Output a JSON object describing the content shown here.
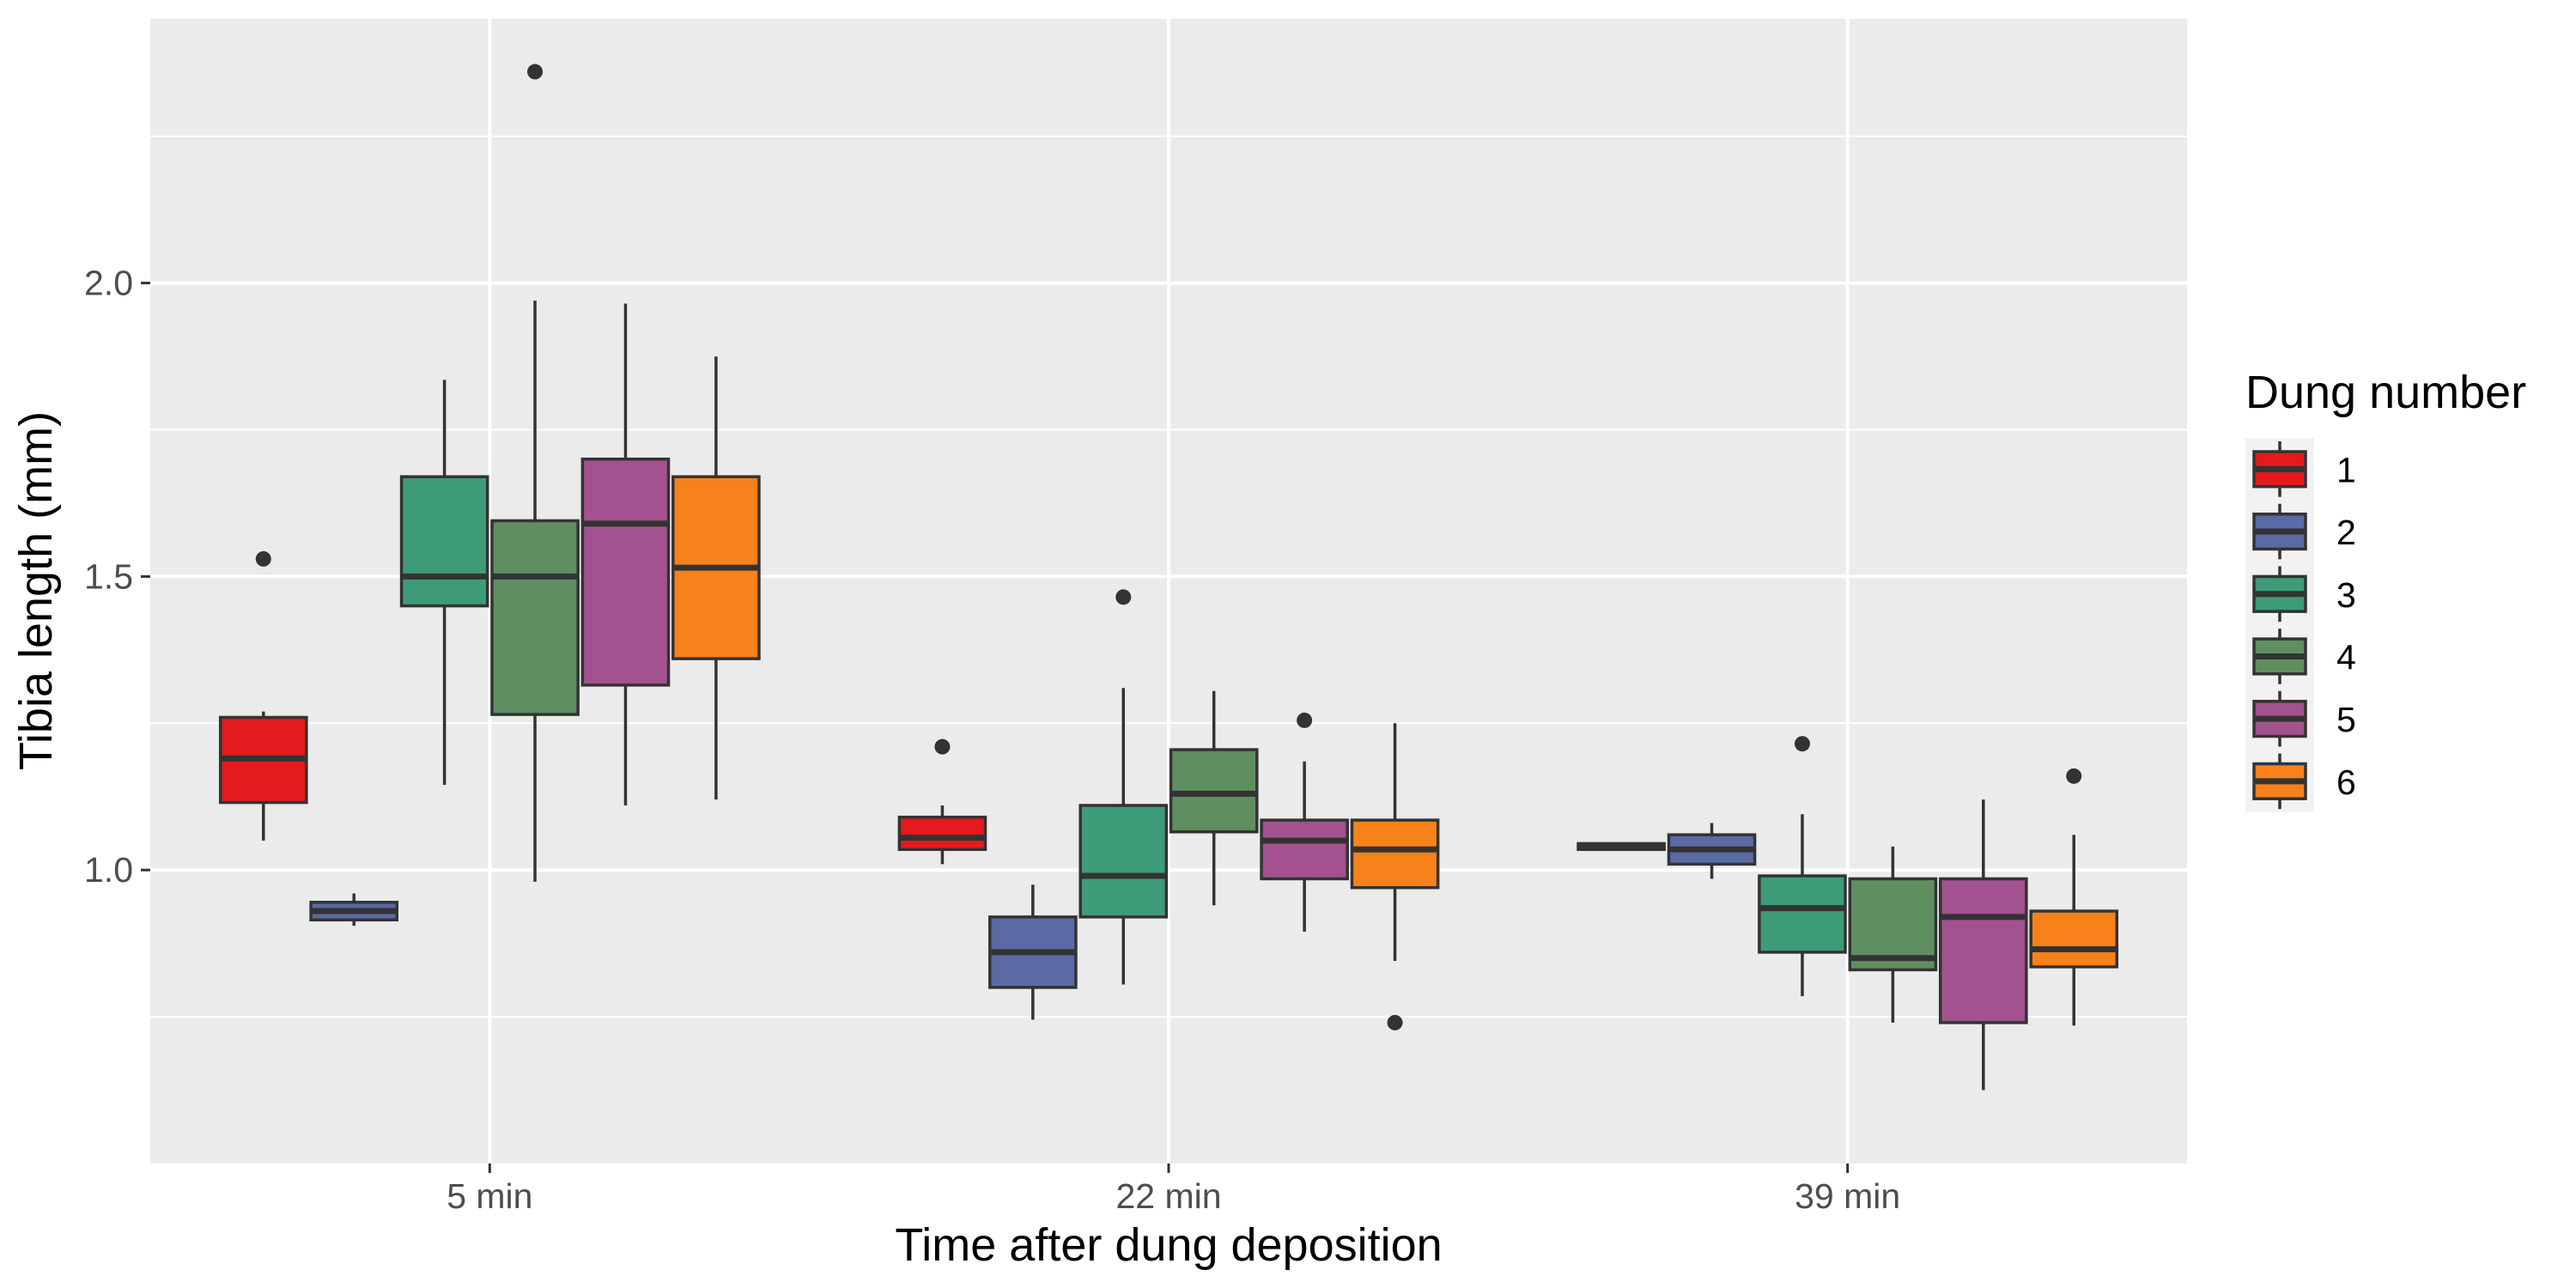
{
  "chart_data": {
    "type": "boxplot",
    "xlabel": "Time after dung deposition",
    "ylabel": "Tibia length (mm)",
    "ylim": [
      0.5,
      2.45
    ],
    "y_ticks": [
      1.0,
      1.5,
      2.0
    ],
    "y_tick_labels": [
      "1.0",
      "1.5",
      "2.0"
    ],
    "y_minor_ticks": [
      0.75,
      1.25,
      1.75,
      2.25
    ],
    "categories": [
      "5 min",
      "22 min",
      "39 min"
    ],
    "grid": true,
    "legend": {
      "title": "Dung number",
      "position": "right"
    },
    "series": [
      {
        "name": "1",
        "color": "#e41a1c",
        "boxes": [
          {
            "lower": 1.05,
            "q1": 1.115,
            "median": 1.19,
            "q3": 1.26,
            "upper": 1.27,
            "outliers": [
              1.53
            ]
          },
          {
            "lower": 1.01,
            "q1": 1.035,
            "median": 1.055,
            "q3": 1.09,
            "upper": 1.11,
            "outliers": [
              1.21
            ]
          },
          {
            "lower": 1.035,
            "q1": 1.035,
            "median": 1.04,
            "q3": 1.045,
            "upper": 1.045,
            "outliers": []
          }
        ]
      },
      {
        "name": "2",
        "color": "#5a6aa5",
        "boxes": [
          {
            "lower": 0.905,
            "q1": 0.915,
            "median": 0.93,
            "q3": 0.945,
            "upper": 0.96,
            "outliers": []
          },
          {
            "lower": 0.745,
            "q1": 0.8,
            "median": 0.86,
            "q3": 0.92,
            "upper": 0.975,
            "outliers": []
          },
          {
            "lower": 0.985,
            "q1": 1.01,
            "median": 1.035,
            "q3": 1.06,
            "upper": 1.08,
            "outliers": []
          }
        ]
      },
      {
        "name": "3",
        "color": "#3e9b78",
        "boxes": [
          {
            "lower": 1.145,
            "q1": 1.45,
            "median": 1.5,
            "q3": 1.67,
            "upper": 1.835,
            "outliers": []
          },
          {
            "lower": 0.805,
            "q1": 0.92,
            "median": 0.99,
            "q3": 1.11,
            "upper": 1.31,
            "outliers": [
              1.465
            ]
          },
          {
            "lower": 0.785,
            "q1": 0.86,
            "median": 0.935,
            "q3": 0.99,
            "upper": 1.095,
            "outliers": [
              1.215
            ]
          }
        ]
      },
      {
        "name": "4",
        "color": "#5f8f61",
        "boxes": [
          {
            "lower": 0.98,
            "q1": 1.265,
            "median": 1.5,
            "q3": 1.595,
            "upper": 1.97,
            "outliers": [
              2.36
            ]
          },
          {
            "lower": 0.94,
            "q1": 1.065,
            "median": 1.13,
            "q3": 1.205,
            "upper": 1.305,
            "outliers": []
          },
          {
            "lower": 0.74,
            "q1": 0.83,
            "median": 0.85,
            "q3": 0.985,
            "upper": 1.04,
            "outliers": []
          }
        ]
      },
      {
        "name": "5",
        "color": "#a3528f",
        "boxes": [
          {
            "lower": 1.11,
            "q1": 1.315,
            "median": 1.59,
            "q3": 1.7,
            "upper": 1.965,
            "outliers": []
          },
          {
            "lower": 0.895,
            "q1": 0.985,
            "median": 1.05,
            "q3": 1.085,
            "upper": 1.185,
            "outliers": [
              1.255
            ]
          },
          {
            "lower": 0.625,
            "q1": 0.74,
            "median": 0.92,
            "q3": 0.985,
            "upper": 1.12,
            "outliers": []
          }
        ]
      },
      {
        "name": "6",
        "color": "#f7811b",
        "boxes": [
          {
            "lower": 1.12,
            "q1": 1.36,
            "median": 1.515,
            "q3": 1.67,
            "upper": 1.875,
            "outliers": []
          },
          {
            "lower": 0.845,
            "q1": 0.97,
            "median": 1.035,
            "q3": 1.085,
            "upper": 1.25,
            "outliers": [
              0.74
            ]
          },
          {
            "lower": 0.735,
            "q1": 0.835,
            "median": 0.865,
            "q3": 0.93,
            "upper": 1.06,
            "outliers": [
              1.16
            ]
          }
        ]
      }
    ]
  }
}
